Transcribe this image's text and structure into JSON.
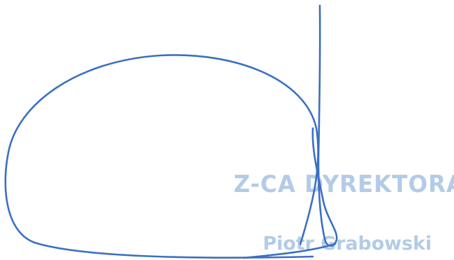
{
  "stamp": {
    "title": "Z-CA DYREKTORA",
    "name": "Piotr Grabowski",
    "color": "#b3cbe6"
  },
  "signature": {
    "color": "#3a6fc4"
  }
}
